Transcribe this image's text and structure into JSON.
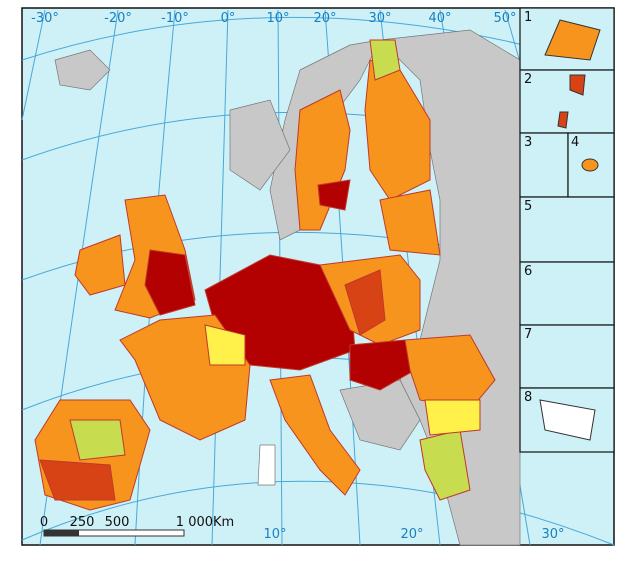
{
  "graticule_labels": {
    "top": [
      "-30°",
      "-20°",
      "-10°",
      "0°",
      "10°",
      "20°",
      "30°",
      "40°",
      "50°"
    ],
    "bottom": [
      "10°",
      "20°",
      "30°"
    ]
  },
  "scale_bar": {
    "labels": [
      "0",
      "250",
      "500",
      "1 000Km"
    ]
  },
  "insets": [
    "1",
    "2",
    "3",
    "4",
    "5",
    "6",
    "7",
    "8"
  ]
}
